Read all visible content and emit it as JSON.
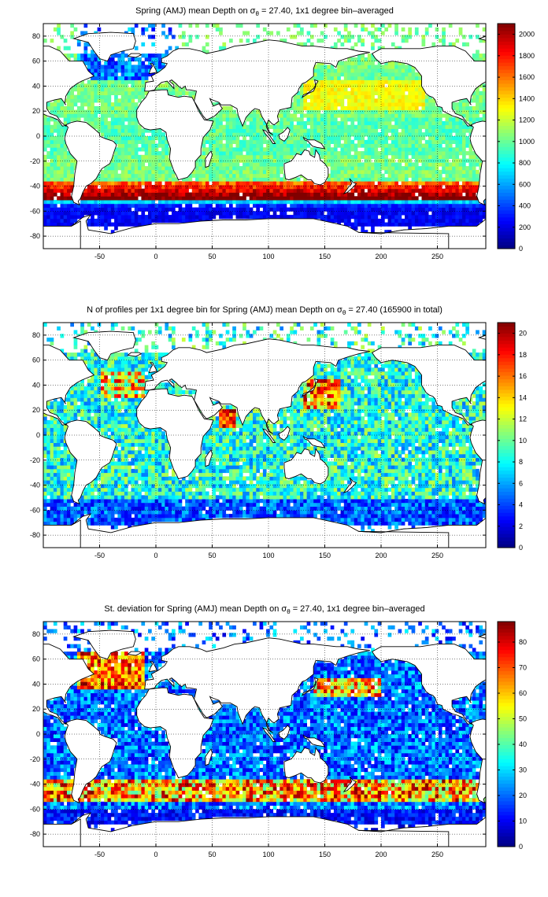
{
  "panels": [
    {
      "title_prefix": "Spring (AMJ) mean Depth on ",
      "sigma": "σ",
      "sigma_sub": "θ",
      "title_suffix": " = 27.40, 1x1 degree bin–averaged",
      "variable": "depth",
      "colorbar": {
        "min": 0,
        "max": 2100,
        "ticks": [
          0,
          200,
          400,
          600,
          800,
          1000,
          1200,
          1400,
          1600,
          1800,
          2000
        ]
      }
    },
    {
      "title_prefix": "N of profiles per 1x1 degree bin for Spring (AMJ) mean Depth on ",
      "sigma": "σ",
      "sigma_sub": "θ",
      "title_suffix": " = 27.40 (165900 in total)",
      "variable": "count",
      "colorbar": {
        "min": 0,
        "max": 21,
        "ticks": [
          0,
          2,
          4,
          6,
          8,
          10,
          12,
          14,
          16,
          18,
          20
        ]
      }
    },
    {
      "title_prefix": "St. deviation for Spring (AMJ) mean Depth on ",
      "sigma": "σ",
      "sigma_sub": "θ",
      "title_suffix": " = 27.40, 1x1 degree bin–averaged",
      "variable": "stdev",
      "colorbar": {
        "min": 0,
        "max": 88,
        "ticks": [
          0,
          10,
          20,
          30,
          40,
          50,
          60,
          70,
          80
        ]
      }
    }
  ],
  "map_axes": {
    "x_range": [
      -100,
      293
    ],
    "y_range": [
      -90,
      90
    ],
    "x_ticks": [
      -50,
      0,
      50,
      100,
      150,
      200,
      250
    ],
    "y_ticks": [
      80,
      60,
      40,
      20,
      0,
      -20,
      -40,
      -60,
      -80
    ],
    "grid": "dotted"
  },
  "colormap": "jet"
}
